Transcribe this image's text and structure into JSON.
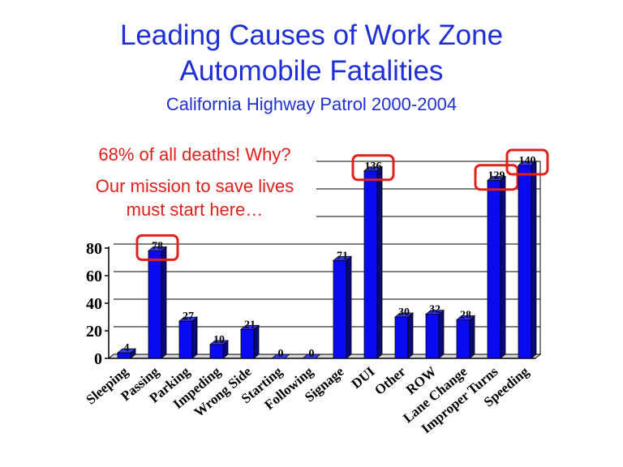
{
  "slide": {
    "title_line1": "Leading Causes of Work Zone",
    "title_line2": "Automobile Fatalities",
    "subtitle": "California Highway Patrol  2000-2004",
    "note_line1": "68% of all deaths!  Why?",
    "note_line2": "Our mission to save lives",
    "note_line3": "must start here…"
  },
  "colors": {
    "title": "#1f2fd8",
    "note": "#e0201b",
    "bar": "#0a0af0",
    "highlight_box": "#e0201b"
  },
  "chart_data": {
    "type": "bar",
    "title": "",
    "xlabel": "",
    "ylabel": "",
    "categories": [
      "Sleeping",
      "Passing",
      "Parking",
      "Impeding",
      "Wrong Side",
      "Starting",
      "Following",
      "Signage",
      "DUI",
      "Other",
      "ROW",
      "Lane Change",
      "Improper Turns",
      "Speeding"
    ],
    "values": [
      4,
      78,
      27,
      10,
      21,
      0,
      0,
      71,
      136,
      30,
      32,
      28,
      129,
      140
    ],
    "y_ticks": [
      0,
      20,
      40,
      60,
      80
    ],
    "ylim": [
      0,
      140
    ],
    "highlighted": [
      "Passing",
      "DUI",
      "Improper Turns",
      "Speeding"
    ],
    "grid": true,
    "legend": "none"
  }
}
